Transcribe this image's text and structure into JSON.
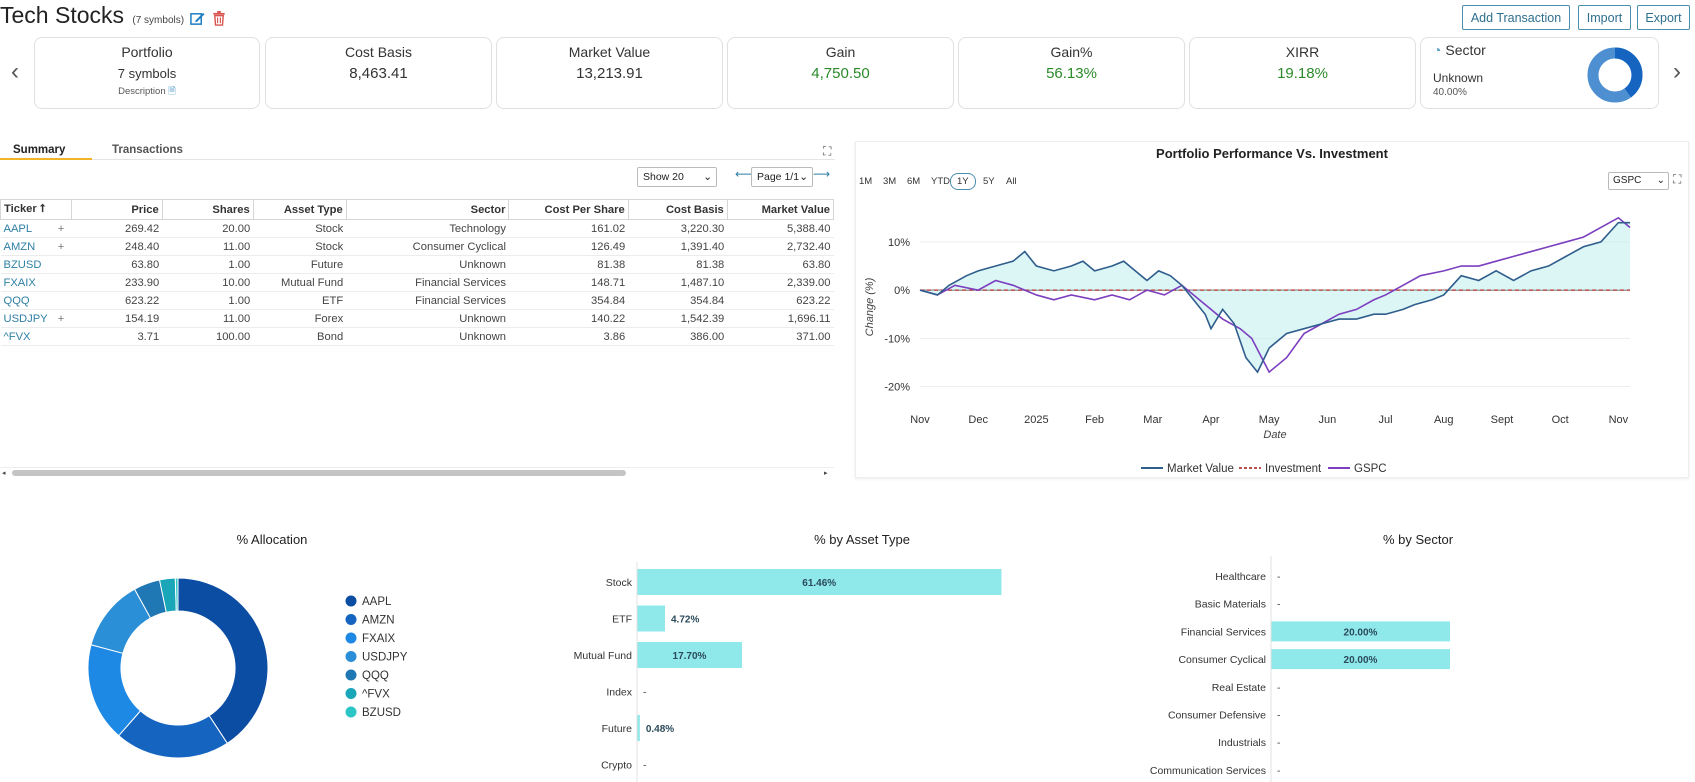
{
  "header": {
    "title": "Tech Stocks",
    "symbol_count": "(7 symbols)",
    "buttons": {
      "add_transaction": "Add Transaction",
      "import": "Import",
      "export": "Export"
    }
  },
  "cards": {
    "portfolio": {
      "label": "Portfolio",
      "value": "7 symbols",
      "description": "Description"
    },
    "cost_basis": {
      "label": "Cost Basis",
      "value": "8,463.41"
    },
    "market_value": {
      "label": "Market Value",
      "value": "13,213.91"
    },
    "gain": {
      "label": "Gain",
      "value": "4,750.50"
    },
    "gain_pct": {
      "label": "Gain%",
      "value": "56.13%"
    },
    "xirr": {
      "label": "XIRR",
      "value": "19.18%"
    },
    "sector": {
      "label": "Sector",
      "value": "Unknown",
      "pct": "40.00%",
      "donut_fraction": 0.4
    }
  },
  "tabs": {
    "summary": "Summary",
    "transactions": "Transactions"
  },
  "controls": {
    "show": "Show 20",
    "page": "Page 1/1",
    "prev": "⟵",
    "next": "⟶"
  },
  "table": {
    "headers": [
      "Ticker ⭡",
      "Price",
      "Shares",
      "Asset Type",
      "Sector",
      "Cost Per Share",
      "Cost Basis",
      "Market Value"
    ],
    "rows": [
      {
        "ticker": "AAPL",
        "plus": "+",
        "price": "269.42",
        "shares": "20.00",
        "type": "Stock",
        "sector": "Technology",
        "cps": "161.02",
        "cost": "3,220.30",
        "mv": "5,388.40"
      },
      {
        "ticker": "AMZN",
        "plus": "+",
        "price": "248.40",
        "shares": "11.00",
        "type": "Stock",
        "sector": "Consumer Cyclical",
        "cps": "126.49",
        "cost": "1,391.40",
        "mv": "2,732.40"
      },
      {
        "ticker": "BZUSD",
        "plus": "",
        "price": "63.80",
        "shares": "1.00",
        "type": "Future",
        "sector": "Unknown",
        "cps": "81.38",
        "cost": "81.38",
        "mv": "63.80"
      },
      {
        "ticker": "FXAIX",
        "plus": "",
        "price": "233.90",
        "shares": "10.00",
        "type": "Mutual Fund",
        "sector": "Financial Services",
        "cps": "148.71",
        "cost": "1,487.10",
        "mv": "2,339.00"
      },
      {
        "ticker": "QQQ",
        "plus": "",
        "price": "623.22",
        "shares": "1.00",
        "type": "ETF",
        "sector": "Financial Services",
        "cps": "354.84",
        "cost": "354.84",
        "mv": "623.22"
      },
      {
        "ticker": "USDJPY",
        "plus": "+",
        "price": "154.19",
        "shares": "11.00",
        "type": "Forex",
        "sector": "Unknown",
        "cps": "140.22",
        "cost": "1,542.39",
        "mv": "1,696.11"
      },
      {
        "ticker": "^FVX",
        "plus": "",
        "price": "3.71",
        "shares": "100.00",
        "type": "Bond",
        "sector": "Unknown",
        "cps": "3.86",
        "cost": "386.00",
        "mv": "371.00"
      }
    ]
  },
  "perf": {
    "ranges": [
      "1M",
      "3M",
      "6M",
      "YTD",
      "1Y",
      "5Y",
      "All"
    ],
    "active_range": "1Y",
    "benchmark": "GSPC"
  },
  "colors": {
    "accent": "#2e7fa5",
    "gain": "#2a8a2a",
    "bar": "#8fe8ea",
    "market": "#2f5d8c",
    "investment": "#c0504d",
    "gspc": "#7b3fbf",
    "tab_underline": "#f0b429"
  },
  "chart_data": [
    {
      "type": "line",
      "title": "Portfolio Performance Vs. Investment",
      "xlabel": "Date",
      "ylabel": "Change (%)",
      "x_ticks": [
        "Nov",
        "Dec",
        "2025",
        "Feb",
        "Mar",
        "Apr",
        "May",
        "Jun",
        "Jul",
        "Aug",
        "Sept",
        "Oct",
        "Nov"
      ],
      "y_ticks": [
        "10%",
        "0%",
        "-10%",
        "-20%"
      ],
      "ylim": [
        -23,
        16
      ],
      "legend": "bottom",
      "series": [
        {
          "name": "Market Value",
          "x": [
            0,
            0.3,
            0.5,
            0.8,
            1,
            1.3,
            1.6,
            1.8,
            2,
            2.3,
            2.6,
            2.8,
            3,
            3.3,
            3.5,
            3.7,
            3.9,
            4.1,
            4.3,
            4.5,
            4.7,
            4.9,
            5,
            5.1,
            5.2,
            5.4,
            5.6,
            5.8,
            6,
            6.3,
            6.6,
            6.9,
            7.2,
            7.5,
            7.8,
            8,
            8.3,
            8.5,
            8.8,
            9,
            9.3,
            9.6,
            9.9,
            10.2,
            10.5,
            10.8,
            11.1,
            11.4,
            11.7,
            12,
            12.2
          ],
          "y": [
            0,
            -1,
            1,
            3,
            4,
            5,
            6,
            8,
            5,
            4,
            5,
            6,
            4,
            5,
            6,
            4,
            2,
            4,
            3,
            1,
            -2,
            -5,
            -8,
            -6,
            -4,
            -7,
            -14,
            -17,
            -12,
            -9,
            -8,
            -7,
            -6,
            -6,
            -5,
            -5,
            -4,
            -3,
            -2,
            -1,
            3,
            2,
            4,
            2,
            4,
            5,
            7,
            9,
            10,
            14,
            14
          ]
        },
        {
          "name": "Investment",
          "x": [
            0,
            12.2
          ],
          "y": [
            0,
            0
          ]
        },
        {
          "name": "GSPC",
          "x": [
            0,
            0.3,
            0.6,
            1,
            1.3,
            1.6,
            2,
            2.3,
            2.6,
            3,
            3.3,
            3.6,
            3.9,
            4.2,
            4.5,
            4.8,
            5,
            5.2,
            5.5,
            5.7,
            6,
            6.3,
            6.6,
            6.9,
            7.2,
            7.5,
            7.8,
            8,
            8.3,
            8.6,
            9,
            9.3,
            9.6,
            9.9,
            10.2,
            10.5,
            10.8,
            11.1,
            11.4,
            11.7,
            12,
            12.2
          ],
          "y": [
            0,
            -1,
            1,
            0,
            2,
            1,
            -1,
            -2,
            -1,
            -2,
            -1,
            -2,
            0,
            -1,
            1,
            -2,
            -4,
            -6,
            -8,
            -10,
            -17,
            -14,
            -9,
            -7,
            -5,
            -4,
            -2,
            -1,
            1,
            3,
            4,
            5,
            5,
            6,
            7,
            8,
            9,
            10,
            11,
            13,
            15,
            13
          ]
        }
      ]
    },
    {
      "type": "pie",
      "title": "% Allocation",
      "labels": [
        "AAPL",
        "AMZN",
        "FXAIX",
        "USDJPY",
        "QQQ",
        "^FVX",
        "BZUSD"
      ],
      "values": [
        40.78,
        20.68,
        17.7,
        12.84,
        4.72,
        2.81,
        0.48
      ],
      "colors": [
        "#0b4da2",
        "#1565c0",
        "#1e88e5",
        "#2b8fd8",
        "#1f77b4",
        "#18a6b8",
        "#2cc6c6"
      ]
    },
    {
      "type": "bar",
      "title": "% by Asset Type",
      "categories": [
        "Stock",
        "ETF",
        "Mutual Fund",
        "Index",
        "Future",
        "Crypto"
      ],
      "values": [
        61.46,
        4.72,
        17.7,
        null,
        0.48,
        null
      ],
      "labels": [
        "61.46%",
        "4.72%",
        "17.70%",
        "-",
        "0.48%",
        "-"
      ],
      "xlim": [
        0,
        100
      ]
    },
    {
      "type": "bar",
      "title": "% by Sector",
      "categories": [
        "Healthcare",
        "Basic Materials",
        "Financial Services",
        "Consumer Cyclical",
        "Real Estate",
        "Consumer Defensive",
        "Industrials",
        "Communication Services"
      ],
      "values": [
        null,
        null,
        20.0,
        20.0,
        null,
        null,
        null,
        null
      ],
      "labels": [
        "-",
        "-",
        "20.00%",
        "20.00%",
        "-",
        "-",
        "-",
        "-"
      ],
      "xlim": [
        0,
        100
      ]
    }
  ]
}
